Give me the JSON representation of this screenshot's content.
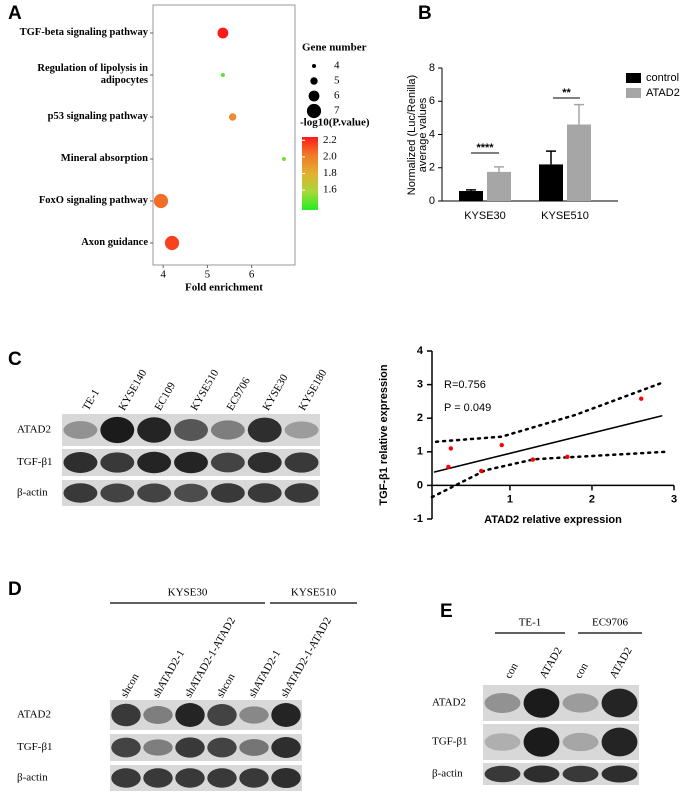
{
  "panel_labels": [
    "A",
    "B",
    "C",
    "D",
    "E"
  ],
  "chart_data": [
    {
      "type": "bubble",
      "categories": [
        "TGF-beta signaling pathway",
        "Regulation of lipolysis in adipocytes",
        "p53 signaling pathway",
        "Mineral absorption",
        "FoxO signaling pathway",
        "Axon guidance"
      ],
      "values": [
        5.35,
        5.35,
        5.57,
        6.73,
        3.95,
        4.2
      ],
      "sizes": [
        6,
        4,
        5,
        4,
        7,
        7
      ],
      "color_values": [
        2.24,
        1.45,
        1.95,
        1.5,
        2.05,
        2.15
      ],
      "xlabel": "Fold enrichment",
      "xlim": [
        3.77,
        6.98
      ],
      "xticks": [
        4,
        5,
        6
      ],
      "size_legend": {
        "title": "Gene number",
        "values": [
          4,
          5,
          6,
          7
        ]
      },
      "color_legend": {
        "title": "-log10(P.value)",
        "lim": [
          1.36,
          2.24
        ],
        "ticks": [
          1.6,
          1.8,
          {
            "value": 2,
            "label": "2.0"
          },
          2.2
        ],
        "colors": [
          "#22ee22",
          "#a8d838",
          "#e2b030",
          "#f07a28",
          "#ff1a1a"
        ]
      }
    },
    {
      "type": "bar",
      "categories": [
        "KYSE30",
        "KYSE510"
      ],
      "ylabel": [
        "Normalized (Luc/Renilla)",
        "average values"
      ],
      "series": [
        {
          "name": "control",
          "color": "#000000",
          "values": [
            0.6,
            2.2
          ],
          "errors": [
            0.07,
            0.8
          ]
        },
        {
          "name": "ATAD2",
          "color": "#a6a6a6",
          "values": [
            1.75,
            4.6
          ],
          "errors": [
            0.3,
            1.2
          ]
        }
      ],
      "ylim": [
        0,
        8
      ],
      "yticks": [
        0,
        2,
        4,
        6,
        8
      ],
      "annotations": [
        "****",
        "**"
      ]
    },
    {
      "type": "scatter",
      "x": [
        0.28,
        0.25,
        0.65,
        0.9,
        1.28,
        1.7,
        2.6
      ],
      "values": [
        1.1,
        0.55,
        0.43,
        1.2,
        0.77,
        0.85,
        2.58
      ],
      "color": "#ff0000",
      "xlim": [
        0.05,
        3
      ],
      "ylim": [
        -1,
        4
      ],
      "xticks": [
        1,
        2,
        3
      ],
      "yticks": [
        -1,
        0,
        1,
        2,
        3,
        4
      ],
      "xlabel": "ATAD2 relative expression",
      "ylabel": "TGF-β1 relative expression",
      "annotations": [
        "R=0.756",
        "P = 0.049"
      ],
      "fit": {
        "x": [
          0.08,
          2.85
        ],
        "values": [
          0.4,
          2.07
        ]
      },
      "bands": [
        {
          "x": [
            0.1,
            0.9,
            1.8,
            2.85
          ],
          "values": [
            1.3,
            1.45,
            2.1,
            3.05
          ]
        },
        {
          "x": [
            0.05,
            0.7,
            1.3,
            2.9
          ],
          "values": [
            -0.35,
            0.45,
            0.78,
            1.0
          ]
        }
      ]
    }
  ],
  "blots": {
    "C": {
      "lanes": [
        "TE-1",
        "KYSE140",
        "EC109",
        "KYSE510",
        "EC9706",
        "KYSE30",
        "KYSE180"
      ],
      "rows": [
        "ATAD2",
        "TGF-β1",
        "β-actin"
      ]
    },
    "D": {
      "groups": [
        "KYSE30",
        "KYSE510"
      ],
      "lanes": [
        "shcon",
        "shATAD2-1",
        "shATAD2-1-ATAD2",
        "shcon",
        "shATAD2-1",
        "shATAD2-1-ATAD2"
      ],
      "rows": [
        "ATAD2",
        "TGF-β1",
        "β-actin"
      ]
    },
    "E": {
      "groups": [
        "TE-1",
        "EC9706"
      ],
      "lanes": [
        "con",
        "ATAD2",
        "con",
        "ATAD2"
      ],
      "rows": [
        "ATAD2",
        "TGF-β1",
        "β-actin"
      ]
    }
  }
}
